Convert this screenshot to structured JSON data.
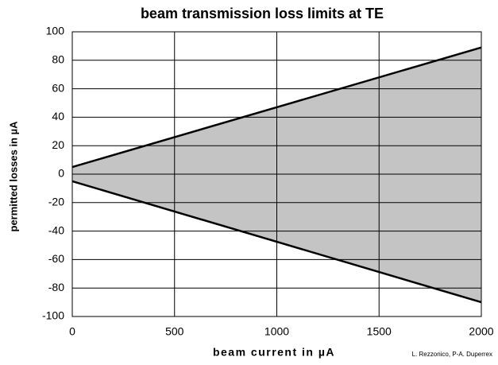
{
  "chart_data": {
    "type": "line",
    "title": "beam transmission loss limits at TE",
    "x_label": "beam current in µA",
    "y_label": "permitted losses in µA",
    "annotation": "L. Rezzonico, P-A. Duperrex",
    "x": [
      0,
      2000
    ],
    "series": [
      {
        "color": "#000000",
        "values": [
          5,
          89
        ]
      },
      {
        "color": "#000000",
        "values": [
          -5,
          -90
        ]
      }
    ],
    "fill_between": "#c4c4c4",
    "xlim": [
      0,
      2000
    ],
    "xticks": [
      0,
      500,
      1000,
      1500,
      2000
    ],
    "ylim": [
      -100,
      100
    ],
    "yticks": [
      -100,
      -80,
      -60,
      -40,
      -20,
      0,
      20,
      40,
      60,
      80,
      100
    ],
    "grid": true
  }
}
